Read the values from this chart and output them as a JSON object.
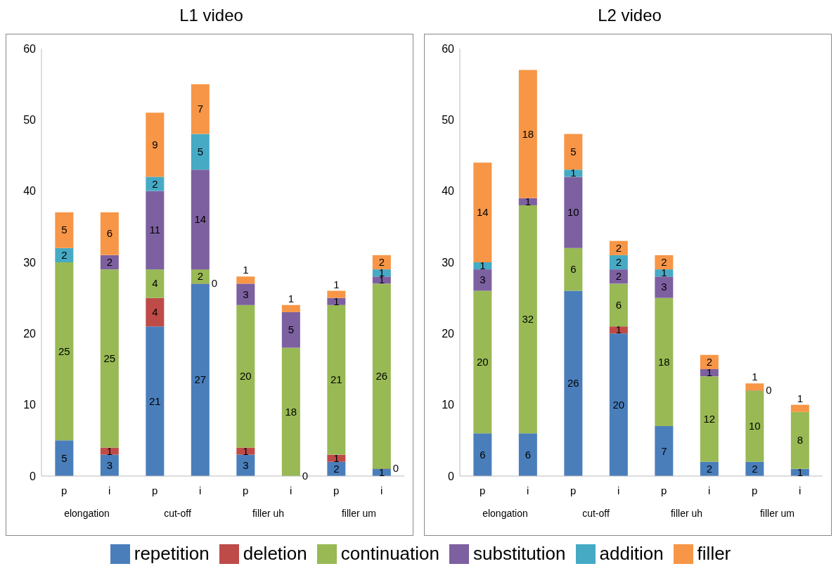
{
  "chart_data": [
    {
      "type": "bar",
      "title": "L1 video",
      "stacked": true,
      "data_labels": true,
      "legend": "bottom",
      "grid": false,
      "categories": [
        "p",
        "i",
        "p",
        "i",
        "p",
        "i",
        "p",
        "i"
      ],
      "annotations": [
        "elongation",
        "cut-off",
        "filler uh",
        "filler um"
      ],
      "ylim": [
        0,
        60
      ],
      "yticks": [
        0,
        10,
        20,
        30,
        40,
        50,
        60
      ],
      "series": [
        {
          "name": "repetition",
          "color": "#4a7ebb",
          "values": [
            5,
            3,
            21,
            27,
            3,
            0,
            2,
            1
          ]
        },
        {
          "name": "deletion",
          "color": "#be4b48",
          "values": [
            null,
            1,
            4,
            0,
            1,
            null,
            1,
            0
          ]
        },
        {
          "name": "continuation",
          "color": "#98b954",
          "values": [
            25,
            25,
            4,
            2,
            20,
            18,
            21,
            26
          ]
        },
        {
          "name": "substitution",
          "color": "#7d60a0",
          "values": [
            null,
            2,
            11,
            14,
            3,
            5,
            1,
            1
          ]
        },
        {
          "name": "addition",
          "color": "#46aac5",
          "values": [
            2,
            null,
            2,
            5,
            null,
            null,
            null,
            1
          ]
        },
        {
          "name": "filler",
          "color": "#f79646",
          "values": [
            5,
            6,
            9,
            7,
            1,
            1,
            1,
            2
          ]
        }
      ]
    },
    {
      "type": "bar",
      "title": "L2 video",
      "stacked": true,
      "data_labels": true,
      "grid": false,
      "categories": [
        "p",
        "i",
        "p",
        "i",
        "p",
        "i",
        "p",
        "i"
      ],
      "annotations": [
        "elongation",
        "cut-off",
        "filler uh",
        "filler um"
      ],
      "ylim": [
        0,
        60
      ],
      "yticks": [
        0,
        10,
        20,
        30,
        40,
        50,
        60
      ],
      "series": [
        {
          "color": "#4a7ebb",
          "values": [
            6,
            6,
            26,
            20,
            7,
            2,
            2,
            1
          ]
        },
        {
          "color": "#be4b48",
          "values": [
            null,
            null,
            null,
            1,
            null,
            null,
            null,
            null
          ]
        },
        {
          "color": "#98b954",
          "values": [
            20,
            32,
            6,
            6,
            18,
            12,
            10,
            8
          ]
        },
        {
          "color": "#7d60a0",
          "values": [
            3,
            1,
            10,
            2,
            3,
            1,
            0,
            null
          ]
        },
        {
          "color": "#46aac5",
          "values": [
            1,
            null,
            1,
            2,
            1,
            null,
            null,
            null
          ]
        },
        {
          "color": "#f79646",
          "values": [
            14,
            18,
            5,
            2,
            2,
            2,
            1,
            1
          ]
        }
      ]
    }
  ]
}
